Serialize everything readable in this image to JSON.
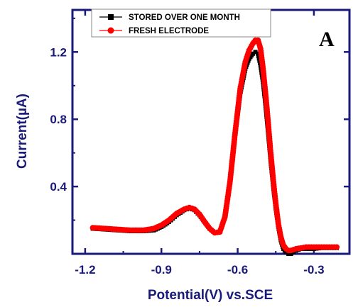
{
  "colors": {
    "axis": "#1a1a7a",
    "text": "#1a1a7a",
    "stored": "#000000",
    "fresh": "#ff0000"
  },
  "panel_label": "A",
  "chart_data": {
    "type": "line",
    "title": "",
    "xlabel": "Potential(V) vs.SCE",
    "ylabel": "Current(µA)",
    "xlim": [
      -1.25,
      -0.16
    ],
    "ylim": [
      0.0,
      1.45
    ],
    "xticks": [
      -1.2,
      -0.9,
      -0.6,
      -0.3
    ],
    "xtick_labels": [
      "-1.2",
      "-0.9",
      "-0.6",
      "-0.3"
    ],
    "yticks": [
      0.4,
      0.8,
      1.2
    ],
    "ytick_labels": [
      "0.4",
      "0.8",
      "1.2"
    ],
    "grid": false,
    "legend_position": "top-left",
    "series": [
      {
        "name": "STORED OVER ONE MONTH",
        "color": "#000000",
        "marker": "square",
        "x": [
          -1.17,
          -1.12,
          -1.07,
          -1.02,
          -0.97,
          -0.93,
          -0.9,
          -0.87,
          -0.84,
          -0.81,
          -0.79,
          -0.77,
          -0.75,
          -0.73,
          -0.71,
          -0.69,
          -0.67,
          -0.65,
          -0.63,
          -0.61,
          -0.59,
          -0.57,
          -0.555,
          -0.54,
          -0.53,
          -0.52,
          -0.51,
          -0.5,
          -0.49,
          -0.48,
          -0.47,
          -0.46,
          -0.45,
          -0.44,
          -0.43,
          -0.42,
          -0.41,
          -0.4,
          -0.39,
          -0.38,
          -0.37,
          -0.35,
          -0.33,
          -0.3,
          -0.27,
          -0.24,
          -0.21
        ],
        "y": [
          0.15,
          0.145,
          0.14,
          0.135,
          0.135,
          0.14,
          0.16,
          0.19,
          0.23,
          0.26,
          0.27,
          0.26,
          0.23,
          0.19,
          0.15,
          0.125,
          0.13,
          0.22,
          0.42,
          0.7,
          0.95,
          1.1,
          1.16,
          1.19,
          1.2,
          1.19,
          1.12,
          1.02,
          0.88,
          0.72,
          0.55,
          0.4,
          0.27,
          0.16,
          0.08,
          0.03,
          0.01,
          0.0,
          0.0,
          0.01,
          0.02,
          0.03,
          0.03,
          0.03,
          0.035,
          0.035,
          0.035
        ]
      },
      {
        "name": "FRESH ELECTRODE",
        "color": "#ff0000",
        "marker": "circle",
        "x": [
          -1.17,
          -1.12,
          -1.07,
          -1.02,
          -0.97,
          -0.93,
          -0.9,
          -0.87,
          -0.84,
          -0.81,
          -0.79,
          -0.77,
          -0.75,
          -0.73,
          -0.71,
          -0.69,
          -0.67,
          -0.65,
          -0.63,
          -0.61,
          -0.59,
          -0.57,
          -0.555,
          -0.54,
          -0.53,
          -0.52,
          -0.51,
          -0.5,
          -0.49,
          -0.48,
          -0.47,
          -0.46,
          -0.45,
          -0.44,
          -0.43,
          -0.42,
          -0.41,
          -0.4,
          -0.39,
          -0.38,
          -0.37,
          -0.35,
          -0.33,
          -0.3,
          -0.27,
          -0.24,
          -0.21
        ],
        "y": [
          0.155,
          0.15,
          0.145,
          0.14,
          0.14,
          0.15,
          0.17,
          0.2,
          0.24,
          0.265,
          0.275,
          0.265,
          0.235,
          0.19,
          0.15,
          0.125,
          0.13,
          0.22,
          0.43,
          0.72,
          0.98,
          1.14,
          1.21,
          1.25,
          1.27,
          1.27,
          1.22,
          1.1,
          0.95,
          0.78,
          0.6,
          0.44,
          0.3,
          0.18,
          0.1,
          0.05,
          0.03,
          0.02,
          0.02,
          0.025,
          0.03,
          0.035,
          0.04,
          0.04,
          0.04,
          0.04,
          0.04
        ]
      }
    ]
  }
}
